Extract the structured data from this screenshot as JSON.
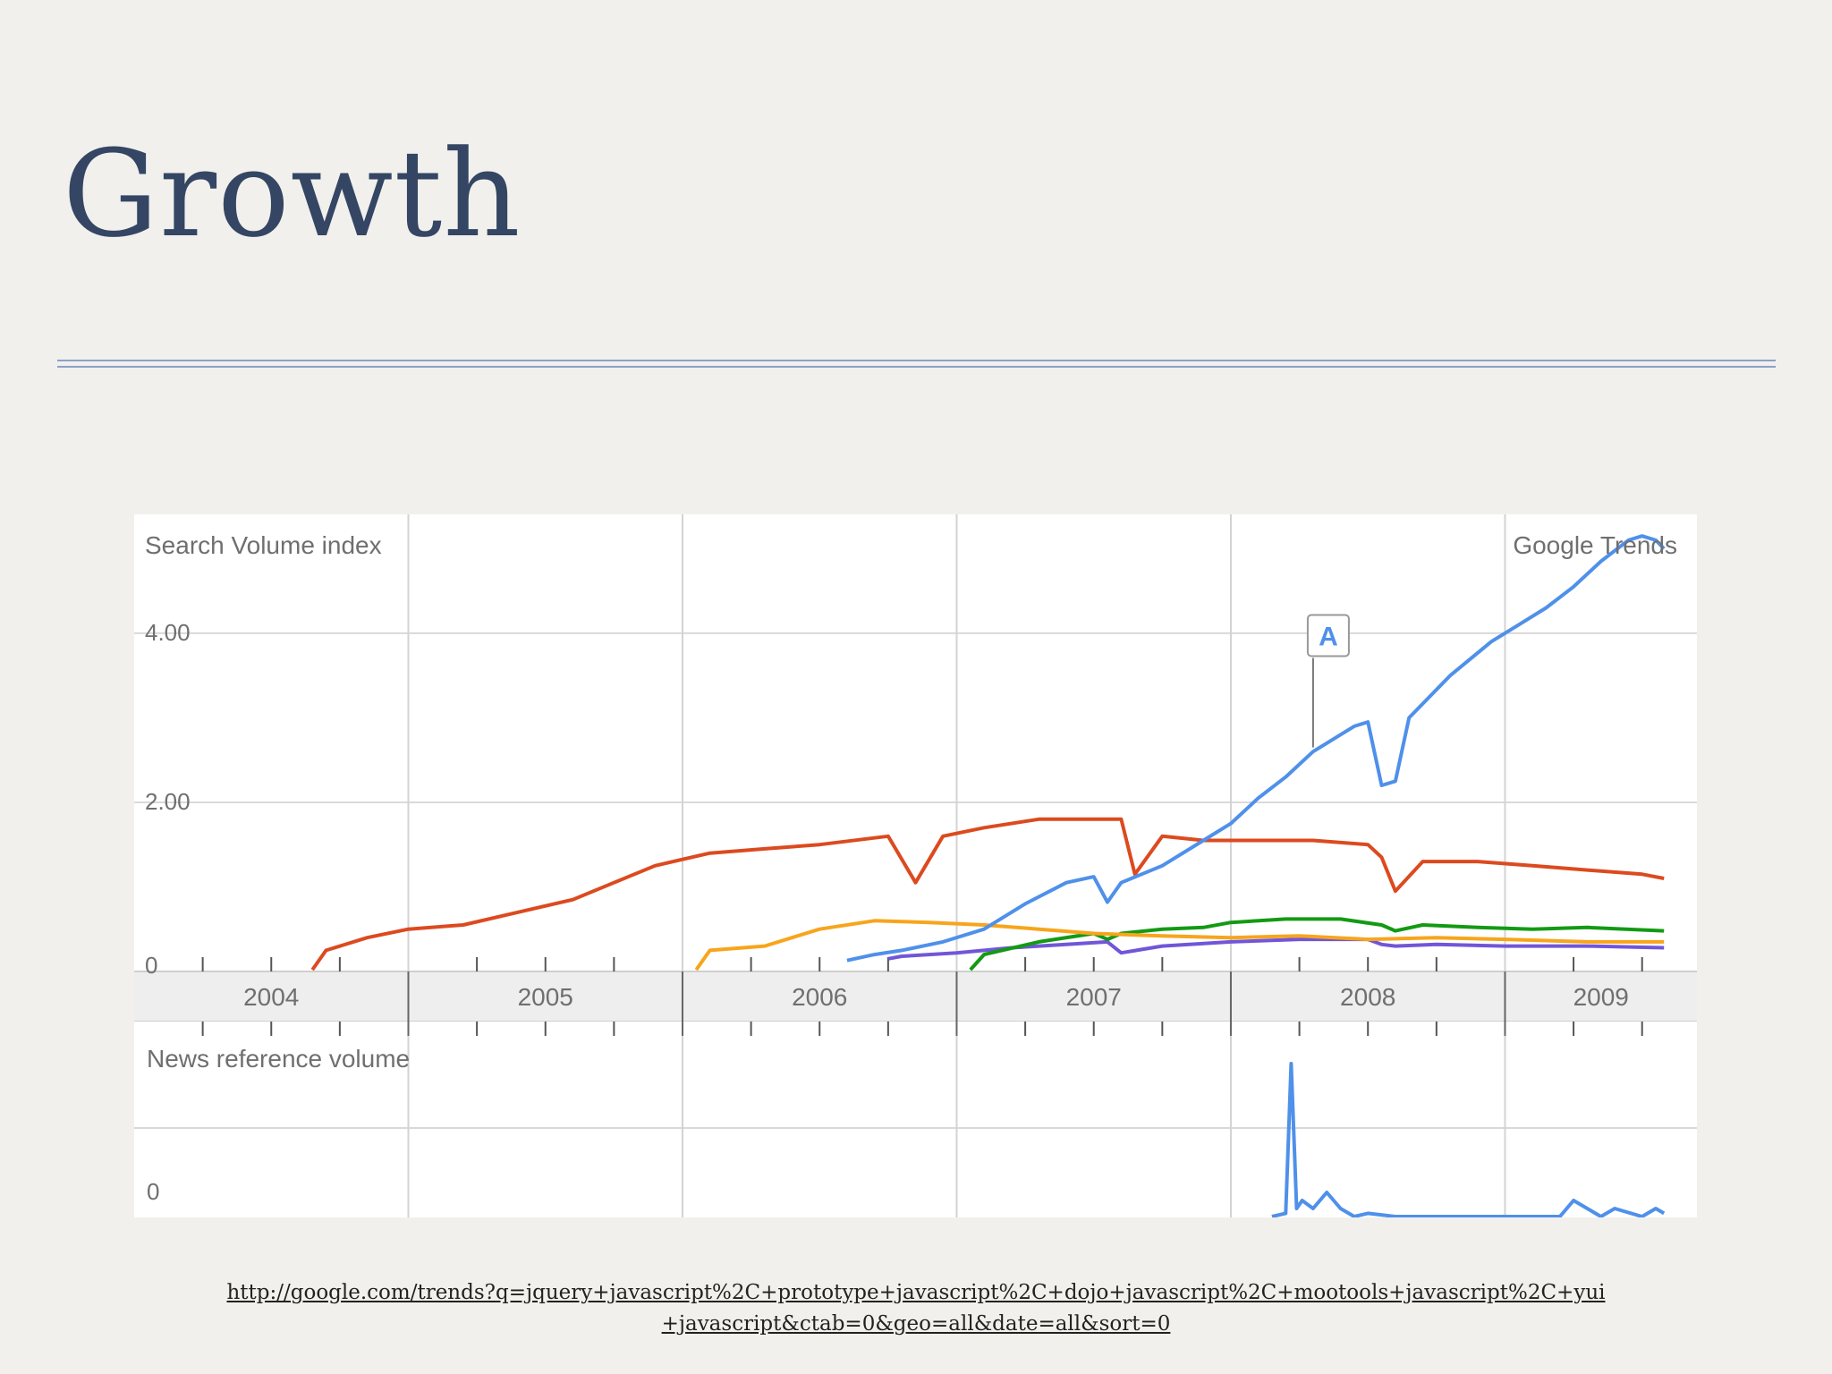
{
  "slide": {
    "title": "Growth",
    "source_url_line1": "http://google.com/trends?q=jquery+javascript%2C+prototype+javascript%2C+dojo+javascript%2C+mootools+javascript%2C+yui",
    "source_url_line2": "+javascript&ctab=0&geo=all&date=all&sort=0"
  },
  "colors": {
    "title": "#344663",
    "rule": "#8da0c9",
    "series": [
      "#4f90ea",
      "#dc4a1f",
      "#f7a51c",
      "#139a13",
      "#7156d8"
    ],
    "news": "#4f90ea"
  },
  "chart_data": {
    "type": "line",
    "ylabel": "Search Volume index",
    "brand": "Google Trends",
    "x_range": [
      2004.0,
      2009.7
    ],
    "ylim": [
      0,
      5.3
    ],
    "yticks": [
      {
        "value": 0,
        "label": "0"
      },
      {
        "value": 2,
        "label": "2.00"
      },
      {
        "value": 4,
        "label": "4.00"
      }
    ],
    "years": [
      "2004",
      "2005",
      "2006",
      "2007",
      "2008",
      "2009"
    ],
    "annotation": {
      "label": "A",
      "x": 2008.3,
      "y": 2.65,
      "series": "jquery javascript"
    },
    "series": [
      {
        "name": "jquery javascript",
        "color": "#4f90ea",
        "x": [
          2006.6,
          2006.7,
          2006.8,
          2006.95,
          2007.1,
          2007.25,
          2007.4,
          2007.5,
          2007.55,
          2007.6,
          2007.75,
          2007.9,
          2008.0,
          2008.1,
          2008.2,
          2008.3,
          2008.35,
          2008.4,
          2008.45,
          2008.5,
          2008.55,
          2008.6,
          2008.65,
          2008.8,
          2008.95,
          2009.05,
          2009.15,
          2009.25,
          2009.35,
          2009.45,
          2009.5,
          2009.55,
          2009.58
        ],
        "y": [
          0.13,
          0.2,
          0.25,
          0.35,
          0.5,
          0.8,
          1.05,
          1.12,
          0.82,
          1.05,
          1.25,
          1.55,
          1.75,
          2.05,
          2.3,
          2.6,
          2.7,
          2.8,
          2.9,
          2.95,
          2.2,
          2.25,
          3.0,
          3.5,
          3.9,
          4.1,
          4.3,
          4.55,
          4.85,
          5.1,
          5.15,
          5.1,
          5.0
        ]
      },
      {
        "name": "prototype javascript",
        "color": "#dc4a1f",
        "x": [
          2004.65,
          2004.7,
          2004.85,
          2005.0,
          2005.2,
          2005.4,
          2005.6,
          2005.75,
          2005.9,
          2006.1,
          2006.3,
          2006.5,
          2006.75,
          2006.85,
          2006.95,
          2007.1,
          2007.3,
          2007.5,
          2007.6,
          2007.65,
          2007.75,
          2007.9,
          2008.1,
          2008.3,
          2008.5,
          2008.55,
          2008.6,
          2008.7,
          2008.9,
          2009.1,
          2009.3,
          2009.5,
          2009.58
        ],
        "y": [
          0.02,
          0.25,
          0.4,
          0.5,
          0.55,
          0.7,
          0.85,
          1.05,
          1.25,
          1.4,
          1.45,
          1.5,
          1.6,
          1.05,
          1.6,
          1.7,
          1.8,
          1.8,
          1.8,
          1.15,
          1.6,
          1.55,
          1.55,
          1.55,
          1.5,
          1.35,
          0.95,
          1.3,
          1.3,
          1.25,
          1.2,
          1.15,
          1.1
        ]
      },
      {
        "name": "dojo javascript",
        "color": "#f7a51c",
        "x": [
          2006.05,
          2006.1,
          2006.3,
          2006.5,
          2006.7,
          2006.9,
          2007.1,
          2007.3,
          2007.5,
          2007.75,
          2008.0,
          2008.25,
          2008.5,
          2008.75,
          2009.0,
          2009.3,
          2009.58
        ],
        "y": [
          0.02,
          0.25,
          0.3,
          0.5,
          0.6,
          0.58,
          0.55,
          0.5,
          0.45,
          0.42,
          0.4,
          0.42,
          0.38,
          0.4,
          0.38,
          0.35,
          0.35
        ]
      },
      {
        "name": "mootools javascript",
        "color": "#139a13",
        "x": [
          2007.05,
          2007.1,
          2007.3,
          2007.5,
          2007.55,
          2007.6,
          2007.75,
          2007.9,
          2008.0,
          2008.2,
          2008.4,
          2008.55,
          2008.6,
          2008.7,
          2008.9,
          2009.1,
          2009.3,
          2009.58
        ],
        "y": [
          0.02,
          0.2,
          0.35,
          0.45,
          0.38,
          0.45,
          0.5,
          0.52,
          0.58,
          0.62,
          0.62,
          0.55,
          0.48,
          0.55,
          0.52,
          0.5,
          0.52,
          0.48
        ]
      },
      {
        "name": "yui javascript",
        "color": "#7156d8",
        "x": [
          2006.75,
          2006.8,
          2007.0,
          2007.2,
          2007.4,
          2007.55,
          2007.6,
          2007.75,
          2008.0,
          2008.25,
          2008.5,
          2008.55,
          2008.6,
          2008.75,
          2009.0,
          2009.3,
          2009.58
        ],
        "y": [
          0.15,
          0.18,
          0.22,
          0.28,
          0.32,
          0.35,
          0.22,
          0.3,
          0.35,
          0.38,
          0.38,
          0.32,
          0.3,
          0.32,
          0.3,
          0.3,
          0.28
        ]
      }
    ],
    "news": {
      "label": "News reference volume",
      "ytick_label": "0",
      "ylim": [
        0,
        1.0
      ],
      "series": [
        {
          "name": "jquery javascript",
          "color": "#4f90ea",
          "x": [
            2008.15,
            2008.2,
            2008.22,
            2008.24,
            2008.26,
            2008.3,
            2008.35,
            2008.4,
            2008.45,
            2008.5,
            2008.6,
            2008.7,
            2008.8,
            2008.9,
            2009.0,
            2009.1,
            2009.2,
            2009.25,
            2009.3,
            2009.35,
            2009.4,
            2009.5,
            2009.55,
            2009.58
          ],
          "y": [
            0.0,
            0.02,
            0.95,
            0.05,
            0.1,
            0.05,
            0.15,
            0.05,
            0.0,
            0.02,
            0.0,
            0.0,
            0.0,
            0.0,
            0.0,
            0.0,
            0.0,
            0.1,
            0.05,
            0.0,
            0.05,
            0.0,
            0.05,
            0.02
          ]
        }
      ]
    }
  }
}
